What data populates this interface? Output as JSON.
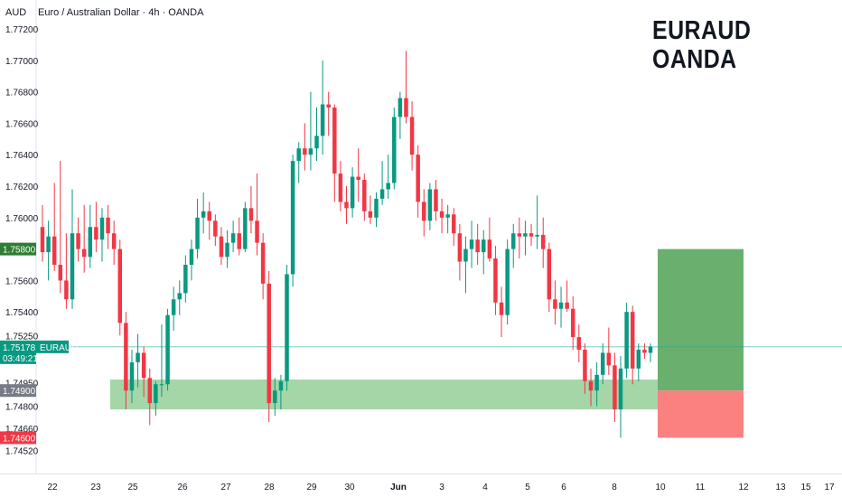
{
  "header": {
    "currency": "AUD",
    "title": "Euro / Australian Dollar · 4h · OANDA"
  },
  "watermark": {
    "line1": "EURAUD",
    "line2": "OANDA"
  },
  "colors": {
    "up": "#089981",
    "down": "#f23645",
    "zone": "#a5d6a7",
    "target": "#6aaf6e",
    "stop": "#fb8080",
    "price_line": "#22ab94"
  },
  "price_scale": {
    "ticks": [
      "1.77200",
      "1.77000",
      "1.76800",
      "1.76600",
      "1.76400",
      "1.76200",
      "1.76000",
      "1.75600",
      "1.75400",
      "1.75250",
      "1.74950",
      "1.74800",
      "1.74660",
      "1.74520"
    ]
  },
  "price_tags": {
    "target": {
      "value": "1.75800",
      "color": "#2e7d32"
    },
    "current": {
      "value": "1.75178",
      "countdown": "03:49:21",
      "symbol": "EURAUD",
      "color": "#089981"
    },
    "entry": {
      "value": "1.74900",
      "color": "#787b86"
    },
    "stop": {
      "value": "1.74600",
      "color": "#f23645"
    }
  },
  "time_axis": {
    "labels": [
      "22",
      "23",
      "25",
      "26",
      "27",
      "28",
      "29",
      "30",
      "Jun",
      "3",
      "4",
      "5",
      "6",
      "8",
      "10",
      "11",
      "12",
      "13",
      "15",
      "17"
    ]
  },
  "chart_data": {
    "type": "candlestick",
    "symbol": "EURAUD",
    "timeframe": "4h",
    "ylim": [
      1.7445,
      1.7732
    ],
    "x_dates": [
      "22",
      "23",
      "25",
      "26",
      "27",
      "28",
      "29",
      "30",
      "Jun",
      "3",
      "4",
      "5",
      "6",
      "8",
      "10",
      "11",
      "12",
      "13",
      "15",
      "17"
    ],
    "support_zone": [
      1.7478,
      1.7497
    ],
    "long_position": {
      "entry": 1.749,
      "target": 1.758,
      "stop": 1.746
    },
    "last_price": 1.75178,
    "candles": [
      [
        1.7594,
        1.7608,
        1.7572,
        1.7578
      ],
      [
        1.7578,
        1.7598,
        1.756,
        1.7588
      ],
      [
        1.7588,
        1.7622,
        1.7566,
        1.757
      ],
      [
        1.757,
        1.7636,
        1.7552,
        1.756
      ],
      [
        1.756,
        1.759,
        1.7542,
        1.7548
      ],
      [
        1.7548,
        1.7618,
        1.7542,
        1.759
      ],
      [
        1.759,
        1.76,
        1.7572,
        1.758
      ],
      [
        1.758,
        1.7608,
        1.7565,
        1.7575
      ],
      [
        1.7575,
        1.7608,
        1.7568,
        1.7594
      ],
      [
        1.7594,
        1.761,
        1.7578,
        1.7586
      ],
      [
        1.7586,
        1.7606,
        1.7572,
        1.76
      ],
      [
        1.76,
        1.7608,
        1.758,
        1.759
      ],
      [
        1.759,
        1.7598,
        1.757,
        1.758
      ],
      [
        1.758,
        1.7586,
        1.7525,
        1.7533
      ],
      [
        1.7533,
        1.754,
        1.7478,
        1.749
      ],
      [
        1.749,
        1.7516,
        1.7482,
        1.7508
      ],
      [
        1.7508,
        1.7526,
        1.7492,
        1.7514
      ],
      [
        1.7514,
        1.7518,
        1.7486,
        1.7498
      ],
      [
        1.7498,
        1.7504,
        1.7468,
        1.7482
      ],
      [
        1.7482,
        1.7496,
        1.7474,
        1.7494
      ],
      [
        1.7494,
        1.7532,
        1.7486,
        1.7494
      ],
      [
        1.7494,
        1.7542,
        1.749,
        1.7538
      ],
      [
        1.7538,
        1.7556,
        1.7528,
        1.7548
      ],
      [
        1.7548,
        1.756,
        1.7538,
        1.7552
      ],
      [
        1.7552,
        1.7576,
        1.7546,
        1.757
      ],
      [
        1.757,
        1.7586,
        1.756,
        1.758
      ],
      [
        1.758,
        1.7612,
        1.7574,
        1.76
      ],
      [
        1.76,
        1.7616,
        1.759,
        1.7604
      ],
      [
        1.7604,
        1.761,
        1.7586,
        1.7598
      ],
      [
        1.7598,
        1.7602,
        1.7582,
        1.7588
      ],
      [
        1.7588,
        1.7594,
        1.757,
        1.7575
      ],
      [
        1.7575,
        1.7592,
        1.7568,
        1.7584
      ],
      [
        1.7584,
        1.7598,
        1.7578,
        1.759
      ],
      [
        1.759,
        1.76,
        1.7576,
        1.758
      ],
      [
        1.758,
        1.761,
        1.7578,
        1.7606
      ],
      [
        1.7606,
        1.762,
        1.759,
        1.7598
      ],
      [
        1.7598,
        1.7628,
        1.7576,
        1.7584
      ],
      [
        1.7584,
        1.759,
        1.7548,
        1.7558
      ],
      [
        1.7558,
        1.7566,
        1.747,
        1.7482
      ],
      [
        1.7482,
        1.7498,
        1.7474,
        1.749
      ],
      [
        1.749,
        1.75,
        1.7478,
        1.7496
      ],
      [
        1.7496,
        1.757,
        1.749,
        1.7564
      ],
      [
        1.7564,
        1.764,
        1.7556,
        1.7636
      ],
      [
        1.7636,
        1.7648,
        1.7622,
        1.7644
      ],
      [
        1.7644,
        1.766,
        1.763,
        1.764
      ],
      [
        1.764,
        1.768,
        1.763,
        1.7644
      ],
      [
        1.7644,
        1.767,
        1.7636,
        1.7652
      ],
      [
        1.7652,
        1.77,
        1.764,
        1.7672
      ],
      [
        1.7672,
        1.768,
        1.7652,
        1.767
      ],
      [
        1.767,
        1.7672,
        1.761,
        1.7628
      ],
      [
        1.7628,
        1.7636,
        1.7604,
        1.761
      ],
      [
        1.761,
        1.762,
        1.7596,
        1.7606
      ],
      [
        1.7606,
        1.7632,
        1.76,
        1.7626
      ],
      [
        1.7626,
        1.7644,
        1.761,
        1.7624
      ],
      [
        1.7624,
        1.7628,
        1.7598,
        1.7604
      ],
      [
        1.7604,
        1.7614,
        1.7596,
        1.76
      ],
      [
        1.76,
        1.7616,
        1.7594,
        1.7612
      ],
      [
        1.7612,
        1.7636,
        1.7608,
        1.7618
      ],
      [
        1.7618,
        1.764,
        1.7612,
        1.7622
      ],
      [
        1.7622,
        1.767,
        1.7618,
        1.7664
      ],
      [
        1.7664,
        1.768,
        1.765,
        1.7676
      ],
      [
        1.7676,
        1.7706,
        1.766,
        1.7664
      ],
      [
        1.7664,
        1.7674,
        1.763,
        1.764
      ],
      [
        1.764,
        1.7646,
        1.76,
        1.761
      ],
      [
        1.761,
        1.7618,
        1.7588,
        1.7598
      ],
      [
        1.7598,
        1.7622,
        1.7592,
        1.7618
      ],
      [
        1.7618,
        1.7624,
        1.7598,
        1.7604
      ],
      [
        1.7604,
        1.7612,
        1.759,
        1.76
      ],
      [
        1.76,
        1.7608,
        1.759,
        1.7602
      ],
      [
        1.7602,
        1.7606,
        1.7582,
        1.759
      ],
      [
        1.759,
        1.7596,
        1.756,
        1.7572
      ],
      [
        1.7572,
        1.7588,
        1.7552,
        1.758
      ],
      [
        1.758,
        1.7598,
        1.7568,
        1.7586
      ],
      [
        1.7586,
        1.7596,
        1.757,
        1.7578
      ],
      [
        1.7578,
        1.7592,
        1.7564,
        1.7586
      ],
      [
        1.7586,
        1.76,
        1.7572,
        1.7574
      ],
      [
        1.7574,
        1.7582,
        1.7538,
        1.7546
      ],
      [
        1.7546,
        1.7556,
        1.7524,
        1.7538
      ],
      [
        1.7538,
        1.7586,
        1.7532,
        1.758
      ],
      [
        1.758,
        1.7596,
        1.7568,
        1.759
      ],
      [
        1.759,
        1.76,
        1.7574,
        1.7588
      ],
      [
        1.7588,
        1.7598,
        1.7576,
        1.759
      ],
      [
        1.759,
        1.7596,
        1.7582,
        1.7588
      ],
      [
        1.7588,
        1.7614,
        1.758,
        1.7589
      ],
      [
        1.7589,
        1.76,
        1.7568,
        1.758
      ],
      [
        1.758,
        1.7584,
        1.754,
        1.7548
      ],
      [
        1.7548,
        1.756,
        1.7532,
        1.7542
      ],
      [
        1.7542,
        1.7556,
        1.753,
        1.7546
      ],
      [
        1.7546,
        1.756,
        1.754,
        1.7542
      ],
      [
        1.7542,
        1.755,
        1.7516,
        1.7524
      ],
      [
        1.7524,
        1.7532,
        1.7508,
        1.7516
      ],
      [
        1.7516,
        1.752,
        1.7488,
        1.7496
      ],
      [
        1.7496,
        1.7504,
        1.748,
        1.749
      ],
      [
        1.749,
        1.7508,
        1.748,
        1.75
      ],
      [
        1.75,
        1.752,
        1.7494,
        1.7514
      ],
      [
        1.7514,
        1.753,
        1.75,
        1.7506
      ],
      [
        1.7506,
        1.7514,
        1.747,
        1.7478
      ],
      [
        1.7478,
        1.7512,
        1.746,
        1.7504
      ],
      [
        1.7504,
        1.7546,
        1.7498,
        1.754
      ],
      [
        1.754,
        1.7544,
        1.7494,
        1.7504
      ],
      [
        1.7504,
        1.752,
        1.7496,
        1.7516
      ],
      [
        1.7516,
        1.752,
        1.751,
        1.7514
      ],
      [
        1.7514,
        1.752,
        1.7508,
        1.7518
      ]
    ]
  }
}
